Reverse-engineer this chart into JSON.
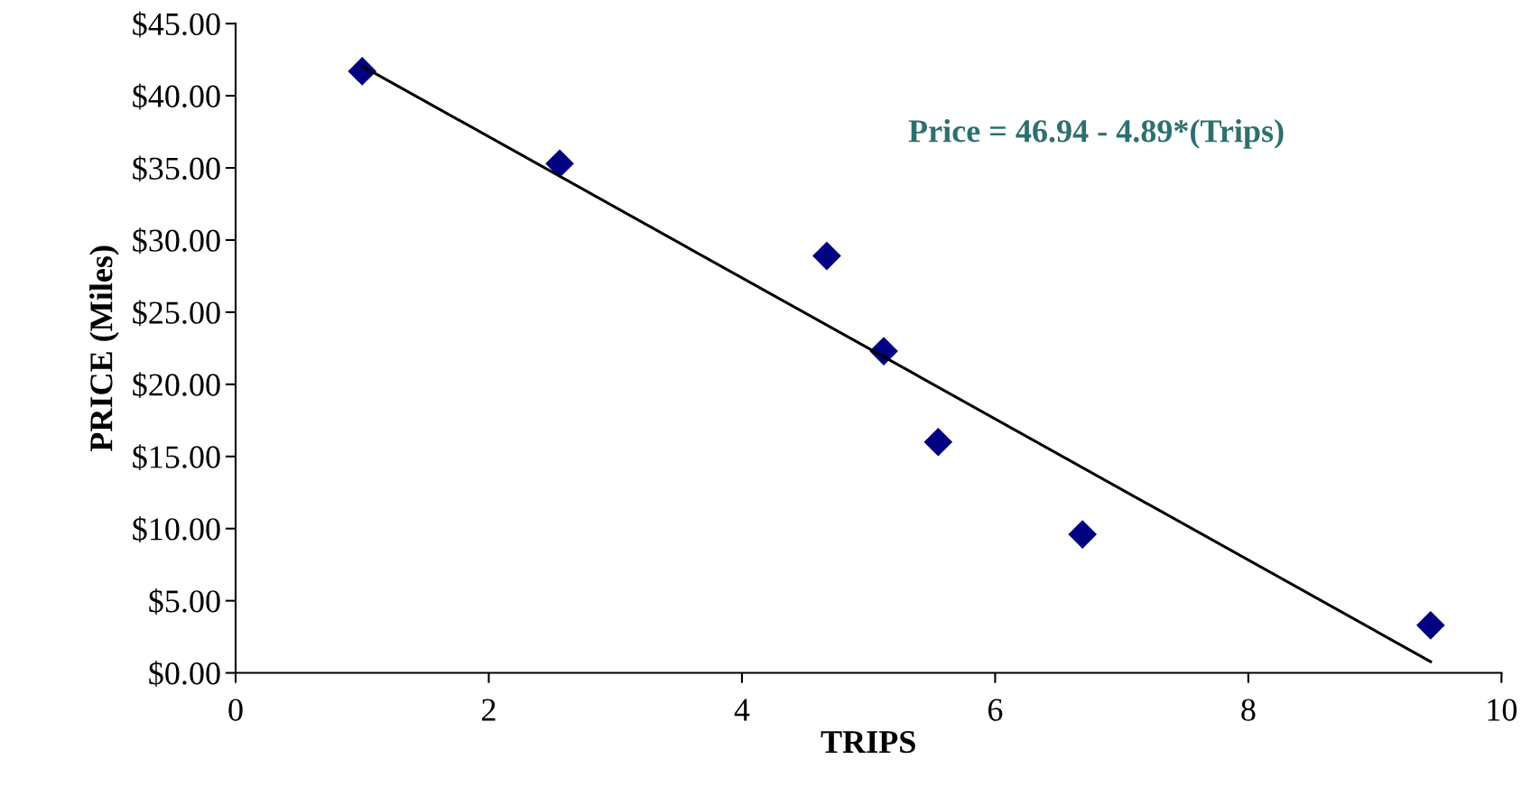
{
  "chart_data": {
    "type": "scatter",
    "xlabel": "TRIPS",
    "ylabel": "PRICE (Miles)",
    "series": [
      {
        "color": "#000080",
        "marker": "diamond",
        "x": [
          1.0,
          2.56,
          4.67,
          5.12,
          5.55,
          6.69,
          9.44
        ],
        "values": [
          41.7,
          35.3,
          28.9,
          22.3,
          16.0,
          9.6,
          3.3
        ]
      },
      {
        "type": "line",
        "color": "#000000",
        "marker": "none",
        "line_style": "solid",
        "x": [
          1.0,
          9.44
        ],
        "values": [
          42.05,
          0.78
        ]
      }
    ],
    "annotations": [
      "Price = 46.94 - 4.89*(Trips)"
    ],
    "xlim": [
      0,
      10
    ],
    "xticks": [
      0,
      2,
      4,
      6,
      8,
      10
    ],
    "ylim": [
      0,
      45
    ],
    "yticks": [
      {
        "value": 0,
        "label": "$0.00"
      },
      {
        "value": 5,
        "label": "$5.00"
      },
      {
        "value": 10,
        "label": "$10.00"
      },
      {
        "value": 15,
        "label": "$15.00"
      },
      {
        "value": 20,
        "label": "$20.00"
      },
      {
        "value": 25,
        "label": "$25.00"
      },
      {
        "value": 30,
        "label": "$30.00"
      },
      {
        "value": 35,
        "label": "$35.00"
      },
      {
        "value": 40,
        "label": "$40.00"
      },
      {
        "value": 45,
        "label": "$45.00"
      }
    ],
    "grid": false,
    "legend": false
  }
}
